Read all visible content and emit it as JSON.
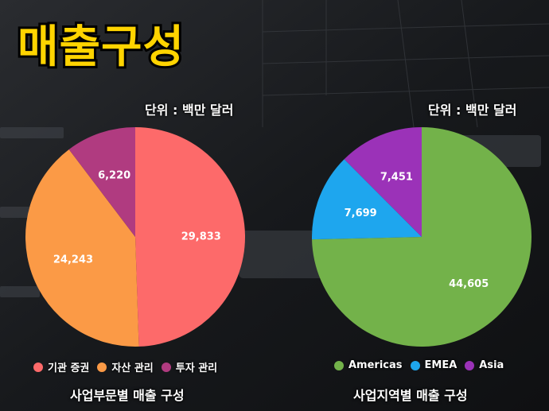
{
  "title": "매출구성",
  "colors": {
    "title": "#ffd400",
    "background": "#1b1d20"
  },
  "chart_data": [
    {
      "type": "pie",
      "unit": "단위 : 백만 달러",
      "caption": "사업부문별 매출 구성",
      "categories": [
        "기관 증권",
        "자산 관리",
        "투자 관리"
      ],
      "values": [
        29833,
        24243,
        6220
      ],
      "value_labels": [
        "29,833",
        "24,243",
        "6,220"
      ],
      "colors": [
        "#fd6a6a",
        "#fb9a46",
        "#b03b80"
      ],
      "legend_position": "bottom"
    },
    {
      "type": "pie",
      "unit": "단위 : 백만 달러",
      "caption": "사업지역별 매출 구성",
      "categories": [
        "Americas",
        "EMEA",
        "Asia"
      ],
      "values": [
        44605,
        7699,
        7451
      ],
      "value_labels": [
        "44,605",
        "7,699",
        "7,451"
      ],
      "colors": [
        "#73b24a",
        "#1ea6ee",
        "#9b32b8"
      ],
      "legend_position": "bottom"
    }
  ]
}
